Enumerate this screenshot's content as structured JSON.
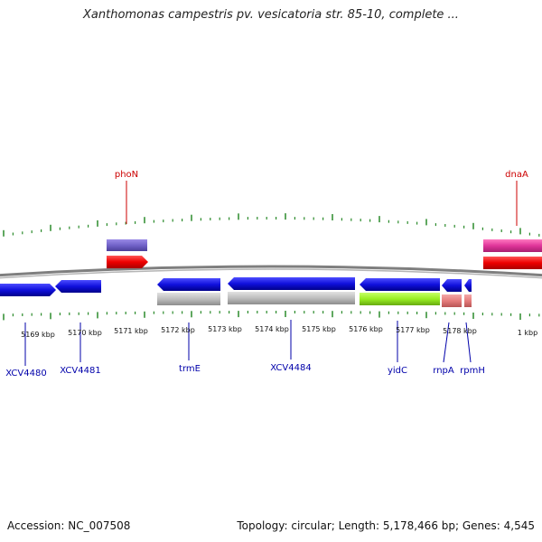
{
  "header": {
    "title": "Xanthomonas campestris pv. vesicatoria str. 85-10, complete ..."
  },
  "footer": {
    "accession": "Accession: NC_007508",
    "summary": "Topology: circular; Length: 5,178,466 bp; Genes: 4,545"
  },
  "colors": {
    "backbone": "#8a8a8a",
    "tick": "#2a8a2a",
    "forward_label": "#cc0000",
    "reverse_label": "#0000aa"
  },
  "scale_labels": [
    "5169 kbp",
    "5170 kbp",
    "5171 kbp",
    "5172 kbp",
    "5173 kbp",
    "5174 kbp",
    "5175 kbp",
    "5176 kbp",
    "5177 kbp",
    "5178 kbp",
    "1 kbp"
  ],
  "forward_genes": [
    {
      "label": "phoN",
      "color": "#7a66cc"
    },
    {
      "label": "dnaA",
      "color": "#e0449a"
    }
  ],
  "reverse_genes": [
    {
      "label": "XCV4480",
      "color": "#1111dd"
    },
    {
      "label": "XCV4481",
      "color": "#1111dd"
    },
    {
      "label": "trmE",
      "color": "#1111dd"
    },
    {
      "label": "XCV4484",
      "color": "#1111dd"
    },
    {
      "label": "yidC",
      "color": "#1111dd"
    },
    {
      "label": "rnpA",
      "color": "#1111dd"
    },
    {
      "label": "rpmH",
      "color": "#1111dd"
    }
  ]
}
